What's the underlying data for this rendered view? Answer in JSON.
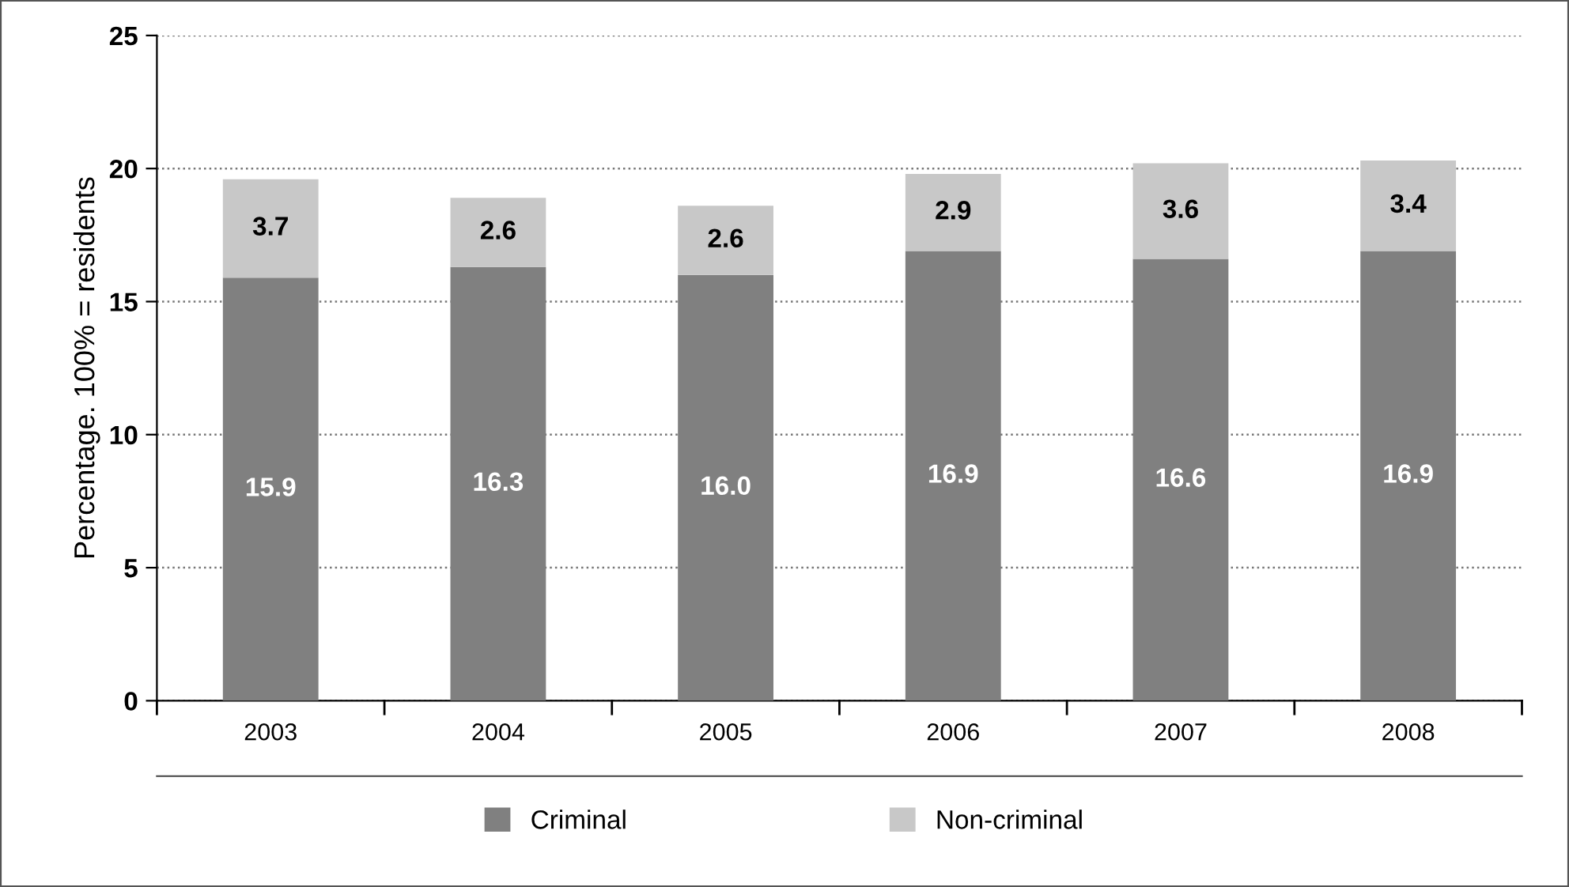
{
  "chart_data": {
    "type": "bar",
    "stacked": true,
    "ylabel": "Percentage. 100% = residents",
    "categories": [
      "2003",
      "2004",
      "2005",
      "2006",
      "2007",
      "2008"
    ],
    "series": [
      {
        "name": "Criminal",
        "color": "#808080",
        "values": [
          15.9,
          16.3,
          16.0,
          16.9,
          16.6,
          16.9
        ],
        "value_labels": [
          "15.9",
          "16.3",
          "16.0",
          "16.9",
          "16.6",
          "16.9"
        ]
      },
      {
        "name": "Non-criminal",
        "color": "#c8c8c8",
        "values": [
          3.7,
          2.6,
          2.6,
          2.9,
          3.6,
          3.4
        ],
        "value_labels": [
          "3.7",
          "2.6",
          "2.6",
          "2.9",
          "3.6",
          "3.4"
        ]
      }
    ],
    "ylim": [
      0,
      25
    ],
    "yticks": [
      0,
      5,
      10,
      15,
      20,
      25
    ],
    "grid": "y",
    "legend": "bottom"
  }
}
